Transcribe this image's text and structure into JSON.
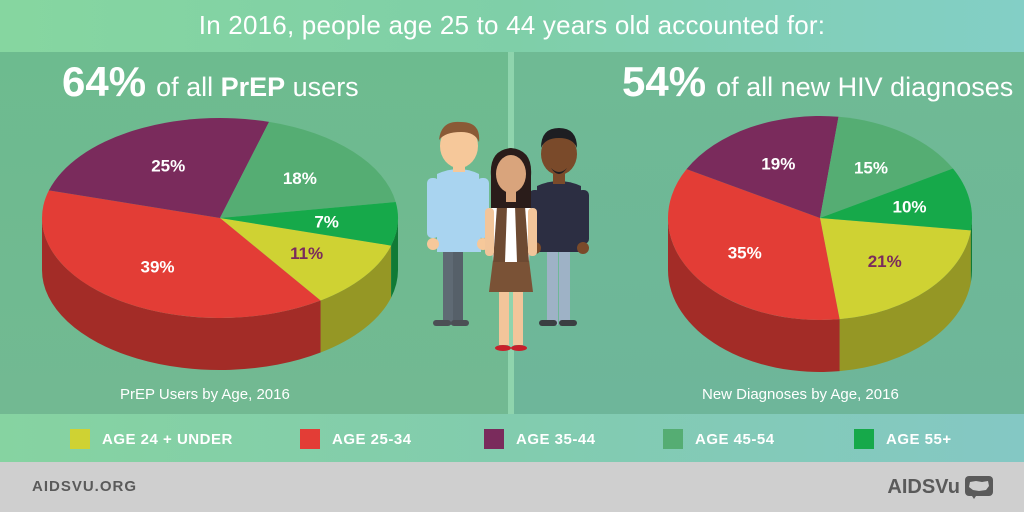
{
  "headline": "In 2016, people age 25 to 44 years old accounted for:",
  "left_panel": {
    "stat_value": "64%",
    "stat_pre": "of all ",
    "stat_strong": "PrEP",
    "stat_post": " users",
    "caption": "PrEP Users by Age, 2016"
  },
  "right_panel": {
    "stat_value": "54%",
    "stat_text": "of all new HIV diagnoses",
    "caption": "New Diagnoses by Age, 2016"
  },
  "colors": {
    "age_24_under": "#cfd233",
    "age_25_34": "#e33d36",
    "age_35_44": "#7a2b5c",
    "age_45_54": "#55ad73",
    "age_55_plus": "#16a94a"
  },
  "legend": [
    {
      "label": "AGE 24 + UNDER",
      "color": "#cfd233"
    },
    {
      "label": "AGE 25-34",
      "color": "#e33d36"
    },
    {
      "label": "AGE 35-44",
      "color": "#7a2b5c"
    },
    {
      "label": "AGE 45-54",
      "color": "#55ad73"
    },
    {
      "label": "AGE 55+",
      "color": "#16a94a"
    }
  ],
  "chart_data": [
    {
      "type": "pie",
      "title": "PrEP Users by Age, 2016",
      "categories": [
        "AGE 24 + UNDER",
        "AGE 25-34",
        "AGE 35-44",
        "AGE 45-54",
        "AGE 55+"
      ],
      "values": [
        11,
        39,
        25,
        18,
        7
      ],
      "labels": [
        "11%",
        "39%",
        "25%",
        "18%",
        "7%"
      ]
    },
    {
      "type": "pie",
      "title": "New Diagnoses by Age, 2016",
      "categories": [
        "AGE 24 + UNDER",
        "AGE 25-34",
        "AGE 35-44",
        "AGE 45-54",
        "AGE 55+"
      ],
      "values": [
        21,
        35,
        19,
        15,
        10
      ],
      "labels": [
        "21%",
        "35%",
        "19%",
        "15%",
        "10%"
      ]
    }
  ],
  "footer": {
    "url": "AIDSVU.ORG",
    "logo_text": "AIDSVu",
    "logo_icon": "us-map-icon"
  }
}
